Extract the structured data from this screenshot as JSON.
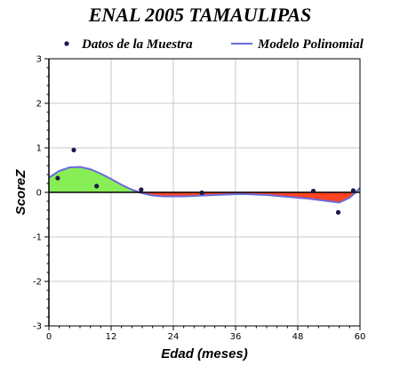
{
  "chart_data": {
    "type": "scatter",
    "title": "ENAL 2005 TAMAULIPAS",
    "xlabel": "Edad (meses)",
    "ylabel": "ScoreZ",
    "xlim": [
      0,
      60
    ],
    "ylim": [
      -3,
      3
    ],
    "x_ticks": [
      "0",
      "12",
      "24",
      "36",
      "48",
      "60"
    ],
    "y_ticks": [
      "3",
      "2",
      "1",
      "0",
      "-1",
      "-2",
      "-3"
    ],
    "grid": true,
    "legend_position": "top",
    "series": [
      {
        "name": "Datos de la Muestra",
        "kind": "points",
        "color": "#1a1a4a",
        "points": [
          {
            "x": 1.7,
            "y": 0.32
          },
          {
            "x": 4.8,
            "y": 0.95
          },
          {
            "x": 9.2,
            "y": 0.14
          },
          {
            "x": 17.8,
            "y": 0.06
          },
          {
            "x": 29.5,
            "y": -0.01
          },
          {
            "x": 51.0,
            "y": 0.03
          },
          {
            "x": 55.8,
            "y": -0.45
          },
          {
            "x": 58.7,
            "y": 0.04
          }
        ]
      },
      {
        "name": "Modelo Polinomial",
        "kind": "line",
        "color": "#6a6adf",
        "points": [
          {
            "x": 0,
            "y": 0.33
          },
          {
            "x": 2,
            "y": 0.48
          },
          {
            "x": 4,
            "y": 0.56
          },
          {
            "x": 6,
            "y": 0.57
          },
          {
            "x": 8,
            "y": 0.52
          },
          {
            "x": 10,
            "y": 0.42
          },
          {
            "x": 12,
            "y": 0.3
          },
          {
            "x": 14,
            "y": 0.17
          },
          {
            "x": 16,
            "y": 0.06
          },
          {
            "x": 18,
            "y": -0.02
          },
          {
            "x": 20,
            "y": -0.07
          },
          {
            "x": 22,
            "y": -0.09
          },
          {
            "x": 24,
            "y": -0.09
          },
          {
            "x": 26,
            "y": -0.09
          },
          {
            "x": 28,
            "y": -0.08
          },
          {
            "x": 30,
            "y": -0.07
          },
          {
            "x": 32,
            "y": -0.06
          },
          {
            "x": 34,
            "y": -0.05
          },
          {
            "x": 36,
            "y": -0.04
          },
          {
            "x": 38,
            "y": -0.04
          },
          {
            "x": 40,
            "y": -0.05
          },
          {
            "x": 42,
            "y": -0.06
          },
          {
            "x": 44,
            "y": -0.08
          },
          {
            "x": 46,
            "y": -0.1
          },
          {
            "x": 48,
            "y": -0.12
          },
          {
            "x": 50,
            "y": -0.14
          },
          {
            "x": 52,
            "y": -0.17
          },
          {
            "x": 54,
            "y": -0.2
          },
          {
            "x": 56,
            "y": -0.23
          },
          {
            "x": 58,
            "y": -0.12
          },
          {
            "x": 59,
            "y": -0.02
          },
          {
            "x": 60,
            "y": 0.1
          }
        ]
      }
    ],
    "colors": {
      "positive_fill": "#88ee55",
      "negative_fill": "#ff4422",
      "grid": "#c8c8c8",
      "axis": "#000000"
    }
  }
}
